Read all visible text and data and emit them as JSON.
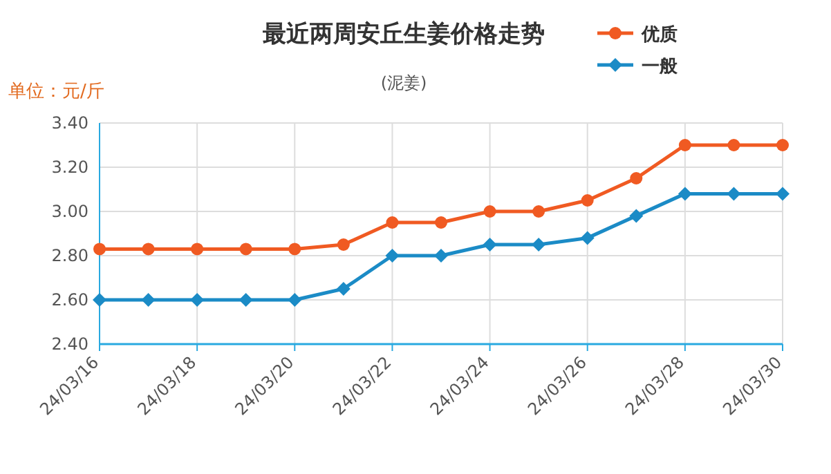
{
  "chart_data": {
    "type": "line",
    "title": "最近两周安丘生姜价格走势",
    "subtitle": "(泥姜)",
    "ylabel": "单位：元/斤",
    "categories": [
      "24/03/16",
      null,
      "24/03/18",
      null,
      "24/03/20",
      null,
      "24/03/22",
      null,
      "24/03/24",
      null,
      "24/03/26",
      null,
      "24/03/28",
      null,
      "24/03/30"
    ],
    "series": [
      {
        "name": "优质",
        "color": "#f05a22",
        "marker": "circle",
        "values": [
          2.83,
          2.83,
          2.83,
          2.83,
          2.83,
          2.85,
          2.95,
          2.95,
          3.0,
          3.0,
          3.05,
          3.15,
          3.3,
          3.3,
          3.3
        ]
      },
      {
        "name": "一般",
        "color": "#1b8bc6",
        "marker": "diamond",
        "values": [
          2.6,
          2.6,
          2.6,
          2.6,
          2.6,
          2.65,
          2.8,
          2.8,
          2.85,
          2.85,
          2.88,
          2.98,
          3.08,
          3.08,
          3.08
        ]
      }
    ],
    "ylim": [
      2.4,
      3.4
    ],
    "yticks": [
      {
        "value": 2.4,
        "label": "2.40"
      },
      {
        "value": 2.6,
        "label": "2.60"
      },
      {
        "value": 2.8,
        "label": "2.80"
      },
      {
        "value": 3.0,
        "label": "3.00"
      },
      {
        "value": 3.2,
        "label": "3.20"
      },
      {
        "value": 3.4,
        "label": "3.40"
      }
    ],
    "grid": true,
    "legend": "top right"
  }
}
